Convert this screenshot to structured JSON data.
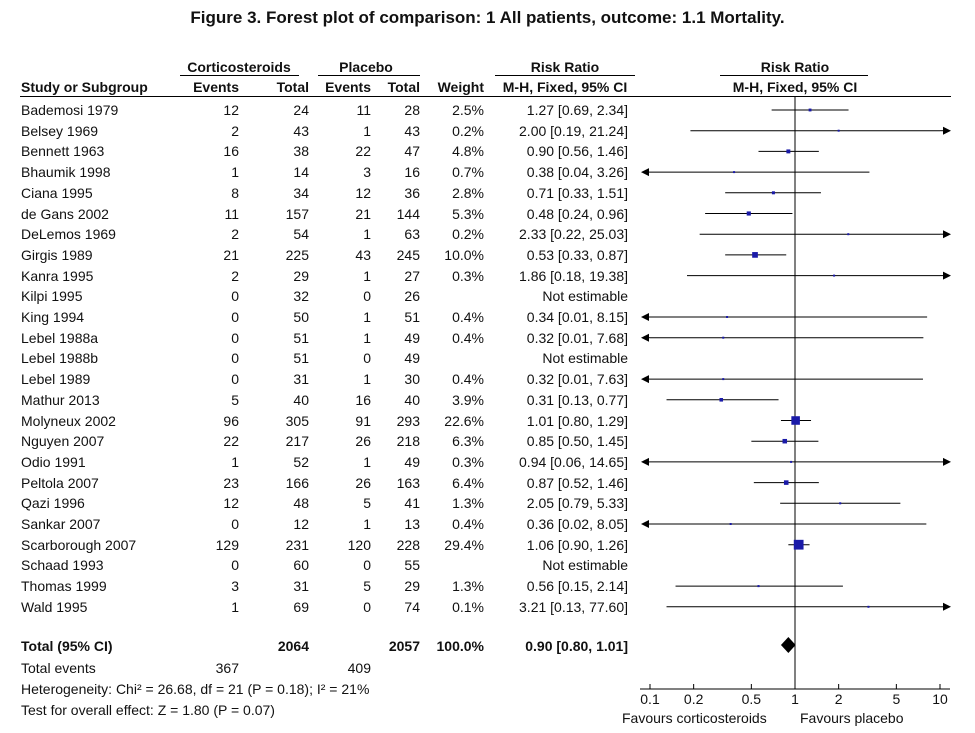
{
  "title": "Figure 3.   Forest plot of comparison: 1 All patients, outcome: 1.1 Mortality.",
  "headers": {
    "group1": "Corticosteroids",
    "group2": "Placebo",
    "rr_left_top": "Risk Ratio",
    "rr_left_bottom": "M-H, Fixed, 95% CI",
    "rr_right_top": "Risk Ratio",
    "rr_right_bottom": "M-H, Fixed, 95% CI",
    "study": "Study or Subgroup",
    "events1": "Events",
    "total1": "Total",
    "events2": "Events",
    "total2": "Total",
    "weight": "Weight"
  },
  "totals": {
    "label": "Total (95% CI)",
    "total1": "2064",
    "total2": "2057",
    "weight": "100.0%",
    "ci_text": "0.90 [0.80, 1.01]",
    "events_label": "Total events",
    "events1": "367",
    "events2": "409"
  },
  "footer": {
    "heterogeneity": "Heterogeneity: Chi² = 26.68, df = 21 (P = 0.18); I² = 21%",
    "overall": "Test for overall effect: Z = 1.80 (P = 0.07)",
    "favours_left": "Favours corticosteroids",
    "favours_right": "Favours placebo"
  },
  "chart_data": {
    "type": "forest",
    "scale": "log",
    "xlim": [
      0.1,
      10
    ],
    "ticks": [
      {
        "value": 0.1,
        "label": "0.1"
      },
      {
        "value": 0.2,
        "label": "0.2"
      },
      {
        "value": 0.5,
        "label": "0.5"
      },
      {
        "value": 1,
        "label": "1"
      },
      {
        "value": 2,
        "label": "2"
      },
      {
        "value": 5,
        "label": "5"
      },
      {
        "value": 10,
        "label": "10"
      }
    ],
    "pooled": {
      "rr": 0.9,
      "lower": 0.8,
      "upper": 1.01
    },
    "studies": [
      {
        "name": "Bademosi 1979",
        "e1": "12",
        "t1": "24",
        "e2": "11",
        "t2": "28",
        "weight": "2.5%",
        "ci_text": "1.27 [0.69, 2.34]",
        "rr": 1.27,
        "lower": 0.69,
        "upper": 2.34,
        "w": 2.5
      },
      {
        "name": "Belsey 1969",
        "e1": "2",
        "t1": "43",
        "e2": "1",
        "t2": "43",
        "weight": "0.2%",
        "ci_text": "2.00 [0.19, 21.24]",
        "rr": 2.0,
        "lower": 0.19,
        "upper": 21.24,
        "w": 0.2
      },
      {
        "name": "Bennett 1963",
        "e1": "16",
        "t1": "38",
        "e2": "22",
        "t2": "47",
        "weight": "4.8%",
        "ci_text": "0.90 [0.56, 1.46]",
        "rr": 0.9,
        "lower": 0.56,
        "upper": 1.46,
        "w": 4.8
      },
      {
        "name": "Bhaumik 1998",
        "e1": "1",
        "t1": "14",
        "e2": "3",
        "t2": "16",
        "weight": "0.7%",
        "ci_text": "0.38 [0.04, 3.26]",
        "rr": 0.38,
        "lower": 0.04,
        "upper": 3.26,
        "w": 0.7
      },
      {
        "name": "Ciana 1995",
        "e1": "8",
        "t1": "34",
        "e2": "12",
        "t2": "36",
        "weight": "2.8%",
        "ci_text": "0.71 [0.33, 1.51]",
        "rr": 0.71,
        "lower": 0.33,
        "upper": 1.51,
        "w": 2.8
      },
      {
        "name": "de Gans 2002",
        "e1": "11",
        "t1": "157",
        "e2": "21",
        "t2": "144",
        "weight": "5.3%",
        "ci_text": "0.48 [0.24, 0.96]",
        "rr": 0.48,
        "lower": 0.24,
        "upper": 0.96,
        "w": 5.3
      },
      {
        "name": "DeLemos 1969",
        "e1": "2",
        "t1": "54",
        "e2": "1",
        "t2": "63",
        "weight": "0.2%",
        "ci_text": "2.33 [0.22, 25.03]",
        "rr": 2.33,
        "lower": 0.22,
        "upper": 25.03,
        "w": 0.2
      },
      {
        "name": "Girgis 1989",
        "e1": "21",
        "t1": "225",
        "e2": "43",
        "t2": "245",
        "weight": "10.0%",
        "ci_text": "0.53 [0.33, 0.87]",
        "rr": 0.53,
        "lower": 0.33,
        "upper": 0.87,
        "w": 10.0
      },
      {
        "name": "Kanra 1995",
        "e1": "2",
        "t1": "29",
        "e2": "1",
        "t2": "27",
        "weight": "0.3%",
        "ci_text": "1.86 [0.18, 19.38]",
        "rr": 1.86,
        "lower": 0.18,
        "upper": 19.38,
        "w": 0.3
      },
      {
        "name": "Kilpi 1995",
        "e1": "0",
        "t1": "32",
        "e2": "0",
        "t2": "26",
        "weight": "",
        "ci_text": "Not estimable",
        "rr": null,
        "lower": null,
        "upper": null,
        "w": 0
      },
      {
        "name": "King 1994",
        "e1": "0",
        "t1": "50",
        "e2": "1",
        "t2": "51",
        "weight": "0.4%",
        "ci_text": "0.34 [0.01, 8.15]",
        "rr": 0.34,
        "lower": 0.01,
        "upper": 8.15,
        "w": 0.4
      },
      {
        "name": "Lebel 1988a",
        "e1": "0",
        "t1": "51",
        "e2": "1",
        "t2": "49",
        "weight": "0.4%",
        "ci_text": "0.32 [0.01, 7.68]",
        "rr": 0.32,
        "lower": 0.01,
        "upper": 7.68,
        "w": 0.4
      },
      {
        "name": "Lebel 1988b",
        "e1": "0",
        "t1": "51",
        "e2": "0",
        "t2": "49",
        "weight": "",
        "ci_text": "Not estimable",
        "rr": null,
        "lower": null,
        "upper": null,
        "w": 0
      },
      {
        "name": "Lebel 1989",
        "e1": "0",
        "t1": "31",
        "e2": "1",
        "t2": "30",
        "weight": "0.4%",
        "ci_text": "0.32 [0.01, 7.63]",
        "rr": 0.32,
        "lower": 0.01,
        "upper": 7.63,
        "w": 0.4
      },
      {
        "name": "Mathur 2013",
        "e1": "5",
        "t1": "40",
        "e2": "16",
        "t2": "40",
        "weight": "3.9%",
        "ci_text": "0.31 [0.13, 0.77]",
        "rr": 0.31,
        "lower": 0.13,
        "upper": 0.77,
        "w": 3.9
      },
      {
        "name": "Molyneux 2002",
        "e1": "96",
        "t1": "305",
        "e2": "91",
        "t2": "293",
        "weight": "22.6%",
        "ci_text": "1.01 [0.80, 1.29]",
        "rr": 1.01,
        "lower": 0.8,
        "upper": 1.29,
        "w": 22.6
      },
      {
        "name": "Nguyen 2007",
        "e1": "22",
        "t1": "217",
        "e2": "26",
        "t2": "218",
        "weight": "6.3%",
        "ci_text": "0.85 [0.50, 1.45]",
        "rr": 0.85,
        "lower": 0.5,
        "upper": 1.45,
        "w": 6.3
      },
      {
        "name": "Odio 1991",
        "e1": "1",
        "t1": "52",
        "e2": "1",
        "t2": "49",
        "weight": "0.3%",
        "ci_text": "0.94 [0.06, 14.65]",
        "rr": 0.94,
        "lower": 0.06,
        "upper": 14.65,
        "w": 0.3
      },
      {
        "name": "Peltola 2007",
        "e1": "23",
        "t1": "166",
        "e2": "26",
        "t2": "163",
        "weight": "6.4%",
        "ci_text": "0.87 [0.52, 1.46]",
        "rr": 0.87,
        "lower": 0.52,
        "upper": 1.46,
        "w": 6.4
      },
      {
        "name": "Qazi 1996",
        "e1": "12",
        "t1": "48",
        "e2": "5",
        "t2": "41",
        "weight": "1.3%",
        "ci_text": "2.05 [0.79, 5.33]",
        "rr": 2.05,
        "lower": 0.79,
        "upper": 5.33,
        "w": 1.3
      },
      {
        "name": "Sankar 2007",
        "e1": "0",
        "t1": "12",
        "e2": "1",
        "t2": "13",
        "weight": "0.4%",
        "ci_text": "0.36 [0.02, 8.05]",
        "rr": 0.36,
        "lower": 0.02,
        "upper": 8.05,
        "w": 0.4
      },
      {
        "name": "Scarborough 2007",
        "e1": "129",
        "t1": "231",
        "e2": "120",
        "t2": "228",
        "weight": "29.4%",
        "ci_text": "1.06 [0.90, 1.26]",
        "rr": 1.06,
        "lower": 0.9,
        "upper": 1.26,
        "w": 29.4
      },
      {
        "name": "Schaad 1993",
        "e1": "0",
        "t1": "60",
        "e2": "0",
        "t2": "55",
        "weight": "",
        "ci_text": "Not estimable",
        "rr": null,
        "lower": null,
        "upper": null,
        "w": 0
      },
      {
        "name": "Thomas 1999",
        "e1": "3",
        "t1": "31",
        "e2": "5",
        "t2": "29",
        "weight": "1.3%",
        "ci_text": "0.56 [0.15, 2.14]",
        "rr": 0.56,
        "lower": 0.15,
        "upper": 2.14,
        "w": 1.3
      },
      {
        "name": "Wald 1995",
        "e1": "1",
        "t1": "69",
        "e2": "0",
        "t2": "74",
        "weight": "0.1%",
        "ci_text": "3.21 [0.13, 77.60]",
        "rr": 3.21,
        "lower": 0.13,
        "upper": 77.6,
        "w": 0.1
      }
    ]
  }
}
